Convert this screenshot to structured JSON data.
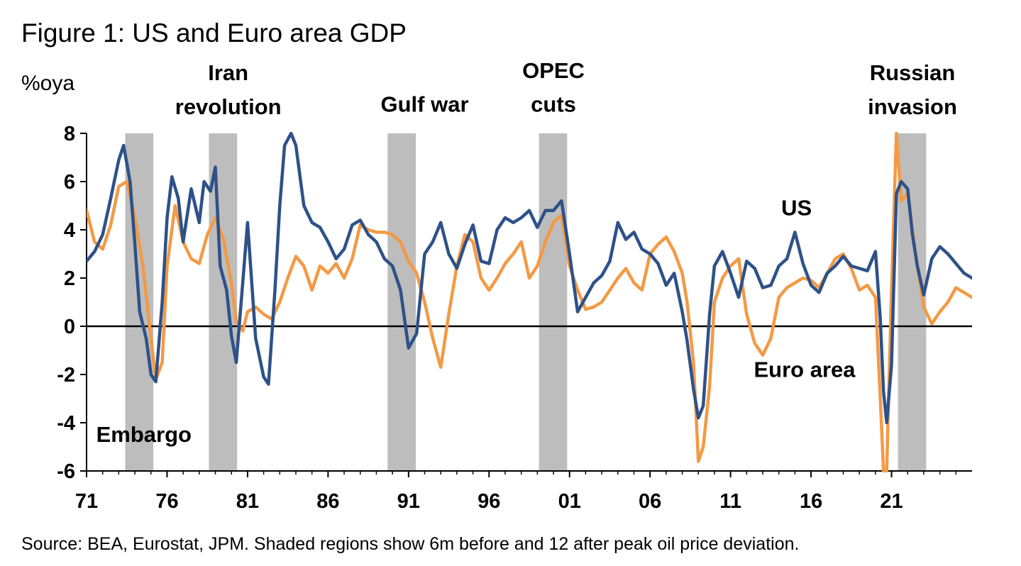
{
  "chart_data": {
    "type": "line",
    "title": "Figure 1: US and Euro area GDP",
    "ylabel": "%oya",
    "xlabel": "",
    "xlim": [
      1971,
      2026
    ],
    "ylim": [
      -6,
      8
    ],
    "yticks": [
      8,
      6,
      4,
      2,
      0,
      -2,
      -4,
      -6
    ],
    "xticks": [
      {
        "label": "71",
        "value": 1971
      },
      {
        "label": "76",
        "value": 1976
      },
      {
        "label": "81",
        "value": 1981
      },
      {
        "label": "86",
        "value": 1986
      },
      {
        "label": "91",
        "value": 1991
      },
      {
        "label": "96",
        "value": 1996
      },
      {
        "label": "01",
        "value": 2001
      },
      {
        "label": "06",
        "value": 2006
      },
      {
        "label": "11",
        "value": 2011
      },
      {
        "label": "16",
        "value": 2016
      },
      {
        "label": "21",
        "value": 2021
      }
    ],
    "shaded_regions": [
      {
        "name": "Embargo",
        "start": 1973.4,
        "end": 1975.15
      },
      {
        "name": "Iran revolution",
        "start": 1978.6,
        "end": 1980.35
      },
      {
        "name": "Gulf war",
        "start": 1989.7,
        "end": 1991.45
      },
      {
        "name": "OPEC cuts",
        "start": 1999.1,
        "end": 2000.85
      },
      {
        "name": "Russian invasion",
        "start": 2021.4,
        "end": 2023.15
      }
    ],
    "annotations": [
      {
        "text": "Embargo",
        "x": 1971.6,
        "y": -4.8
      },
      {
        "text": "Iran",
        "x": 1979.8,
        "y": 10.2
      },
      {
        "text": "revolution",
        "x": 1979.8,
        "y": 8.8
      },
      {
        "text": "Gulf war",
        "x": 1992.0,
        "y": 8.9
      },
      {
        "text": "OPEC",
        "x": 2000.0,
        "y": 10.3
      },
      {
        "text": "cuts",
        "x": 2000.0,
        "y": 8.9
      },
      {
        "text": "Russian",
        "x": 2022.3,
        "y": 10.2
      },
      {
        "text": "invasion",
        "x": 2022.3,
        "y": 8.8
      }
    ],
    "series": [
      {
        "name": "US",
        "color": "#2e5188",
        "label_x": 2015.1,
        "label_y": 4.6,
        "x": [
          1971.0,
          1971.5,
          1972.0,
          1972.5,
          1973.0,
          1973.3,
          1973.7,
          1974.0,
          1974.3,
          1974.7,
          1975.0,
          1975.3,
          1975.7,
          1976.0,
          1976.3,
          1976.7,
          1977.0,
          1977.5,
          1978.0,
          1978.3,
          1978.7,
          1979.0,
          1979.3,
          1979.7,
          1980.0,
          1980.3,
          1980.7,
          1981.0,
          1981.5,
          1982.0,
          1982.3,
          1982.7,
          1983.0,
          1983.3,
          1983.7,
          1984.0,
          1984.5,
          1985.0,
          1985.5,
          1986.0,
          1986.5,
          1987.0,
          1987.5,
          1988.0,
          1988.5,
          1989.0,
          1989.5,
          1990.0,
          1990.5,
          1991.0,
          1991.5,
          1992.0,
          1992.5,
          1993.0,
          1993.5,
          1994.0,
          1994.5,
          1995.0,
          1995.5,
          1996.0,
          1996.5,
          1997.0,
          1997.5,
          1998.0,
          1998.5,
          1999.0,
          1999.5,
          2000.0,
          2000.5,
          2001.0,
          2001.5,
          2002.0,
          2002.5,
          2003.0,
          2003.5,
          2004.0,
          2004.5,
          2005.0,
          2005.5,
          2006.0,
          2006.5,
          2007.0,
          2007.5,
          2008.0,
          2008.3,
          2008.7,
          2009.0,
          2009.3,
          2009.7,
          2010.0,
          2010.5,
          2011.0,
          2011.5,
          2012.0,
          2012.5,
          2013.0,
          2013.5,
          2014.0,
          2014.5,
          2015.0,
          2015.5,
          2016.0,
          2016.5,
          2017.0,
          2017.5,
          2018.0,
          2018.5,
          2019.0,
          2019.5,
          2020.0,
          2020.3,
          2020.5,
          2020.7,
          2021.0,
          2021.3,
          2021.6,
          2022.0,
          2022.3,
          2022.6,
          2023.0,
          2023.5,
          2024.0,
          2024.5,
          2025.0,
          2025.5,
          2026.0
        ],
        "values": [
          2.7,
          3.1,
          3.8,
          5.3,
          6.9,
          7.5,
          6.0,
          3.4,
          0.6,
          -0.5,
          -2.0,
          -2.3,
          1.0,
          4.5,
          6.2,
          5.3,
          3.5,
          5.7,
          4.3,
          6.0,
          5.6,
          6.6,
          2.5,
          1.5,
          -0.4,
          -1.5,
          1.8,
          4.3,
          -0.5,
          -2.1,
          -2.4,
          1.5,
          5.0,
          7.5,
          8.0,
          7.5,
          5.0,
          4.3,
          4.1,
          3.5,
          2.8,
          3.2,
          4.2,
          4.4,
          3.8,
          3.5,
          2.8,
          2.5,
          1.5,
          -0.9,
          -0.3,
          3.0,
          3.5,
          4.3,
          3.0,
          2.4,
          3.4,
          4.2,
          2.7,
          2.6,
          4.0,
          4.5,
          4.3,
          4.5,
          4.8,
          4.1,
          4.8,
          4.8,
          5.2,
          3.0,
          0.6,
          1.2,
          1.8,
          2.1,
          2.7,
          4.3,
          3.6,
          3.9,
          3.2,
          3.0,
          2.6,
          1.7,
          2.2,
          0.6,
          -0.6,
          -2.6,
          -3.8,
          -3.3,
          0.5,
          2.5,
          3.1,
          2.2,
          1.2,
          2.7,
          2.4,
          1.6,
          1.7,
          2.5,
          2.8,
          3.9,
          2.6,
          1.7,
          1.4,
          2.2,
          2.5,
          2.9,
          2.5,
          2.4,
          2.3,
          3.1,
          0.3,
          -2.7,
          -4.0,
          -1.6,
          5.5,
          6.0,
          5.7,
          3.8,
          2.5,
          1.3,
          2.8,
          3.3,
          3.0,
          2.6,
          2.2,
          2.0
        ]
      },
      {
        "name": "Euro area",
        "color": "#f39a45",
        "label_x": 2015.6,
        "label_y": -2.1,
        "x": [
          1971.0,
          1971.5,
          1972.0,
          1972.5,
          1973.0,
          1973.5,
          1974.0,
          1974.5,
          1975.0,
          1975.3,
          1975.7,
          1976.0,
          1976.5,
          1977.0,
          1977.5,
          1978.0,
          1978.5,
          1979.0,
          1979.5,
          1980.0,
          1980.3,
          1980.7,
          1981.0,
          1981.5,
          1982.0,
          1982.5,
          1983.0,
          1983.5,
          1984.0,
          1984.5,
          1985.0,
          1985.5,
          1986.0,
          1986.5,
          1987.0,
          1987.5,
          1988.0,
          1988.5,
          1989.0,
          1989.5,
          1990.0,
          1990.5,
          1991.0,
          1991.5,
          1992.0,
          1992.5,
          1993.0,
          1993.5,
          1994.0,
          1994.5,
          1995.0,
          1995.5,
          1996.0,
          1996.5,
          1997.0,
          1997.5,
          1998.0,
          1998.5,
          1999.0,
          1999.5,
          2000.0,
          2000.5,
          2001.0,
          2001.5,
          2002.0,
          2002.5,
          2003.0,
          2003.5,
          2004.0,
          2004.5,
          2005.0,
          2005.5,
          2006.0,
          2006.5,
          2007.0,
          2007.5,
          2008.0,
          2008.3,
          2008.7,
          2009.0,
          2009.3,
          2009.7,
          2010.0,
          2010.5,
          2011.0,
          2011.5,
          2012.0,
          2012.5,
          2013.0,
          2013.5,
          2014.0,
          2014.5,
          2015.0,
          2015.5,
          2016.0,
          2016.5,
          2017.0,
          2017.5,
          2018.0,
          2018.5,
          2019.0,
          2019.5,
          2020.0,
          2020.3,
          2020.5,
          2020.7,
          2021.0,
          2021.3,
          2021.6,
          2022.0,
          2022.3,
          2022.6,
          2023.0,
          2023.5,
          2024.0,
          2024.5,
          2025.0,
          2025.5,
          2026.0
        ],
        "values": [
          4.8,
          3.5,
          3.2,
          4.2,
          5.8,
          6.0,
          4.5,
          2.5,
          -0.5,
          -2.2,
          -1.5,
          2.5,
          5.0,
          3.5,
          2.8,
          2.6,
          3.8,
          4.5,
          3.6,
          1.8,
          0.2,
          -0.2,
          0.6,
          0.8,
          0.5,
          0.3,
          1.0,
          2.0,
          2.9,
          2.5,
          1.5,
          2.5,
          2.2,
          2.6,
          2.0,
          2.8,
          4.2,
          4.0,
          3.9,
          3.9,
          3.8,
          3.5,
          2.7,
          2.2,
          1.0,
          -0.5,
          -1.7,
          0.5,
          2.5,
          3.8,
          3.5,
          2.0,
          1.5,
          2.0,
          2.6,
          3.0,
          3.5,
          2.0,
          2.5,
          3.5,
          4.3,
          4.6,
          2.5,
          1.5,
          0.7,
          0.8,
          1.0,
          1.5,
          2.0,
          2.4,
          1.8,
          1.5,
          3.0,
          3.4,
          3.7,
          3.1,
          2.2,
          1.0,
          -1.5,
          -5.6,
          -5.0,
          -2.5,
          1.0,
          2.0,
          2.5,
          2.8,
          0.5,
          -0.7,
          -1.2,
          -0.5,
          1.2,
          1.6,
          1.8,
          2.0,
          1.9,
          1.6,
          2.2,
          2.8,
          3.0,
          2.4,
          1.5,
          1.7,
          1.2,
          -3.0,
          -6.0,
          -6.0,
          1.5,
          8.0,
          5.2,
          5.5,
          4.0,
          2.5,
          0.8,
          0.1,
          0.6,
          1.0,
          1.6,
          1.4,
          1.2
        ]
      }
    ],
    "source": "Source: BEA, Eurostat, JPM. Shaded regions show 6m before and 12 after peak oil price deviation."
  }
}
